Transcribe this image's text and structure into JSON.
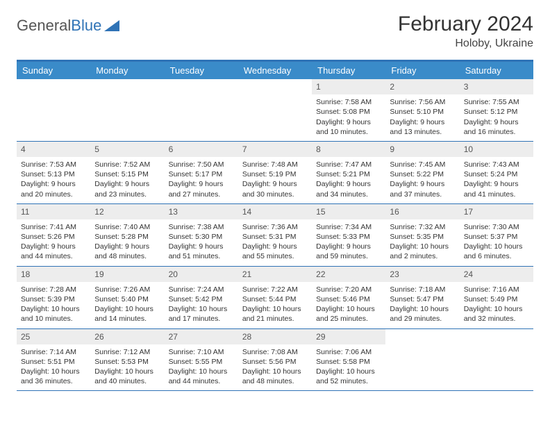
{
  "logo": {
    "text_general": "General",
    "text_blue": "Blue"
  },
  "title": "February 2024",
  "location": "Holoby, Ukraine",
  "colors": {
    "header_bg": "#3a8bc9",
    "border_top": "#2f73b6",
    "row_border": "#2f73b6",
    "daynum_bg": "#ededed",
    "text": "#333333"
  },
  "weekdays": [
    "Sunday",
    "Monday",
    "Tuesday",
    "Wednesday",
    "Thursday",
    "Friday",
    "Saturday"
  ],
  "weeks": [
    [
      null,
      null,
      null,
      null,
      {
        "n": "1",
        "sunrise": "7:58 AM",
        "sunset": "5:08 PM",
        "daylight": "9 hours and 10 minutes."
      },
      {
        "n": "2",
        "sunrise": "7:56 AM",
        "sunset": "5:10 PM",
        "daylight": "9 hours and 13 minutes."
      },
      {
        "n": "3",
        "sunrise": "7:55 AM",
        "sunset": "5:12 PM",
        "daylight": "9 hours and 16 minutes."
      }
    ],
    [
      {
        "n": "4",
        "sunrise": "7:53 AM",
        "sunset": "5:13 PM",
        "daylight": "9 hours and 20 minutes."
      },
      {
        "n": "5",
        "sunrise": "7:52 AM",
        "sunset": "5:15 PM",
        "daylight": "9 hours and 23 minutes."
      },
      {
        "n": "6",
        "sunrise": "7:50 AM",
        "sunset": "5:17 PM",
        "daylight": "9 hours and 27 minutes."
      },
      {
        "n": "7",
        "sunrise": "7:48 AM",
        "sunset": "5:19 PM",
        "daylight": "9 hours and 30 minutes."
      },
      {
        "n": "8",
        "sunrise": "7:47 AM",
        "sunset": "5:21 PM",
        "daylight": "9 hours and 34 minutes."
      },
      {
        "n": "9",
        "sunrise": "7:45 AM",
        "sunset": "5:22 PM",
        "daylight": "9 hours and 37 minutes."
      },
      {
        "n": "10",
        "sunrise": "7:43 AM",
        "sunset": "5:24 PM",
        "daylight": "9 hours and 41 minutes."
      }
    ],
    [
      {
        "n": "11",
        "sunrise": "7:41 AM",
        "sunset": "5:26 PM",
        "daylight": "9 hours and 44 minutes."
      },
      {
        "n": "12",
        "sunrise": "7:40 AM",
        "sunset": "5:28 PM",
        "daylight": "9 hours and 48 minutes."
      },
      {
        "n": "13",
        "sunrise": "7:38 AM",
        "sunset": "5:30 PM",
        "daylight": "9 hours and 51 minutes."
      },
      {
        "n": "14",
        "sunrise": "7:36 AM",
        "sunset": "5:31 PM",
        "daylight": "9 hours and 55 minutes."
      },
      {
        "n": "15",
        "sunrise": "7:34 AM",
        "sunset": "5:33 PM",
        "daylight": "9 hours and 59 minutes."
      },
      {
        "n": "16",
        "sunrise": "7:32 AM",
        "sunset": "5:35 PM",
        "daylight": "10 hours and 2 minutes."
      },
      {
        "n": "17",
        "sunrise": "7:30 AM",
        "sunset": "5:37 PM",
        "daylight": "10 hours and 6 minutes."
      }
    ],
    [
      {
        "n": "18",
        "sunrise": "7:28 AM",
        "sunset": "5:39 PM",
        "daylight": "10 hours and 10 minutes."
      },
      {
        "n": "19",
        "sunrise": "7:26 AM",
        "sunset": "5:40 PM",
        "daylight": "10 hours and 14 minutes."
      },
      {
        "n": "20",
        "sunrise": "7:24 AM",
        "sunset": "5:42 PM",
        "daylight": "10 hours and 17 minutes."
      },
      {
        "n": "21",
        "sunrise": "7:22 AM",
        "sunset": "5:44 PM",
        "daylight": "10 hours and 21 minutes."
      },
      {
        "n": "22",
        "sunrise": "7:20 AM",
        "sunset": "5:46 PM",
        "daylight": "10 hours and 25 minutes."
      },
      {
        "n": "23",
        "sunrise": "7:18 AM",
        "sunset": "5:47 PM",
        "daylight": "10 hours and 29 minutes."
      },
      {
        "n": "24",
        "sunrise": "7:16 AM",
        "sunset": "5:49 PM",
        "daylight": "10 hours and 32 minutes."
      }
    ],
    [
      {
        "n": "25",
        "sunrise": "7:14 AM",
        "sunset": "5:51 PM",
        "daylight": "10 hours and 36 minutes."
      },
      {
        "n": "26",
        "sunrise": "7:12 AM",
        "sunset": "5:53 PM",
        "daylight": "10 hours and 40 minutes."
      },
      {
        "n": "27",
        "sunrise": "7:10 AM",
        "sunset": "5:55 PM",
        "daylight": "10 hours and 44 minutes."
      },
      {
        "n": "28",
        "sunrise": "7:08 AM",
        "sunset": "5:56 PM",
        "daylight": "10 hours and 48 minutes."
      },
      {
        "n": "29",
        "sunrise": "7:06 AM",
        "sunset": "5:58 PM",
        "daylight": "10 hours and 52 minutes."
      },
      null,
      null
    ]
  ]
}
